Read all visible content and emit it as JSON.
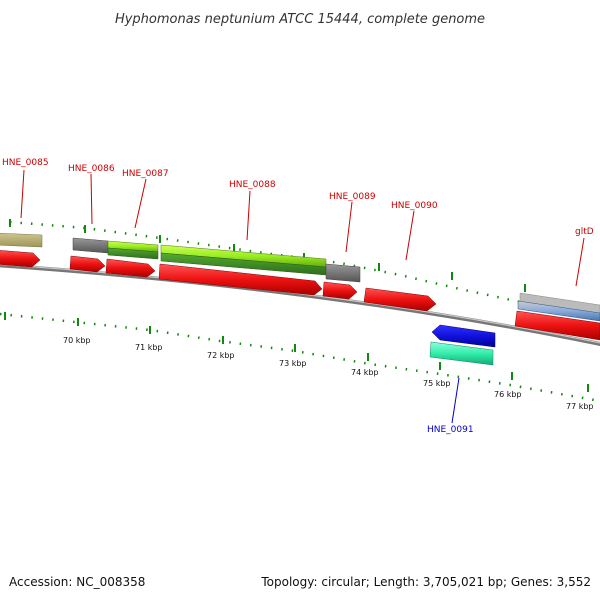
{
  "title": "Hyphomonas neptunium ATCC 15444, complete genome",
  "footer": {
    "accession": "Accession: NC_008358",
    "summary": "Topology: circular; Length: 3,705,021 bp; Genes: 3,552"
  },
  "ticks": [
    "70 kbp",
    "71 kbp",
    "72 kbp",
    "73 kbp",
    "74 kbp",
    "75 kbp",
    "76 kbp",
    "77 kbp"
  ],
  "genes": [
    {
      "name": "HNE_0085",
      "strand": "forward"
    },
    {
      "name": "HNE_0086",
      "strand": "forward"
    },
    {
      "name": "HNE_0087",
      "strand": "forward"
    },
    {
      "name": "HNE_0088",
      "strand": "forward"
    },
    {
      "name": "HNE_0089",
      "strand": "forward"
    },
    {
      "name": "HNE_0090",
      "strand": "forward"
    },
    {
      "name": "gltD",
      "strand": "forward"
    },
    {
      "name": "HNE_0091",
      "strand": "reverse"
    }
  ],
  "colors": {
    "background": "#ffffff",
    "backbone": "#8a8a8a",
    "cds_forward": "#ee1111",
    "cds_reverse": "#1111dd",
    "label_forward": "#cc0000",
    "label_reverse": "#0000cc",
    "tick": "#118811",
    "gray_feature": "#777777",
    "olive_feature": "#b5ac70",
    "lime_feature": "#88dd22",
    "cyan_feature": "#33eeaa",
    "blue_feature": "#6699cc"
  }
}
